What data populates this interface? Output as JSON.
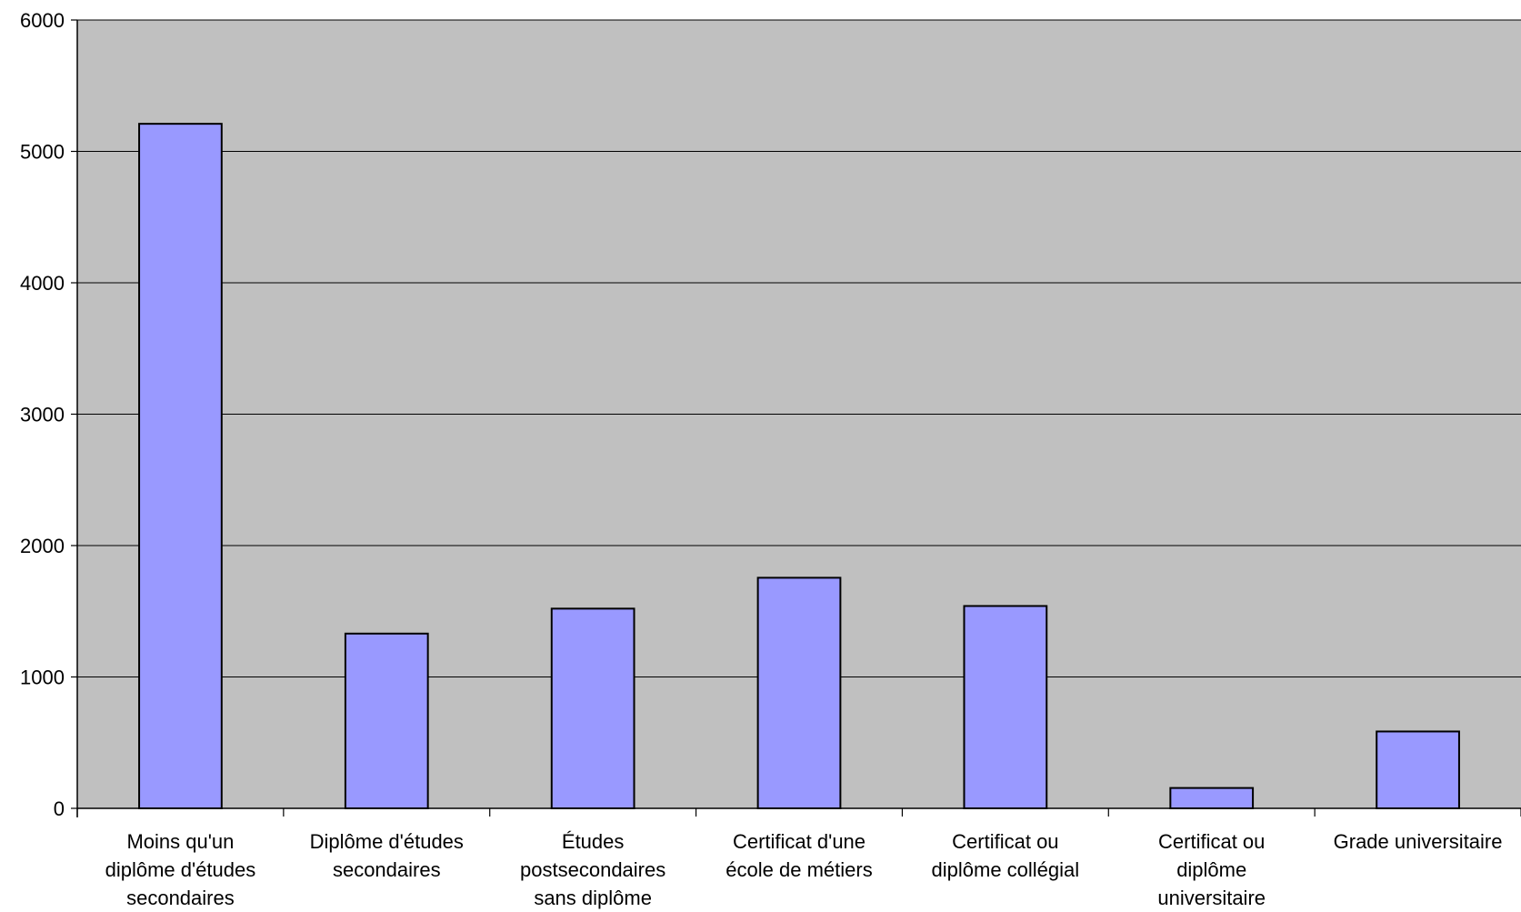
{
  "chart_data": {
    "type": "bar",
    "title": "",
    "xlabel": "",
    "ylabel": "",
    "categories": [
      "Moins qu'un diplôme d'études secondaires",
      "Diplôme d'études secondaires",
      "Études postsecondaires sans diplôme",
      "Certificat d'une école de métiers",
      "Certificat ou diplôme collégial",
      "Certificat ou diplôme universitaire",
      "Grade universitaire"
    ],
    "category_lines": [
      [
        "Moins qu'un",
        "diplôme d'études",
        "secondaires"
      ],
      [
        "Diplôme d'études",
        "secondaires"
      ],
      [
        "Études",
        "postsecondaires",
        "sans diplôme"
      ],
      [
        "Certificat d'une",
        "école de métiers"
      ],
      [
        "Certificat ou",
        "diplôme collégial"
      ],
      [
        "Certificat ou",
        "diplôme",
        "universitaire"
      ],
      [
        "Grade universitaire"
      ]
    ],
    "values": [
      5210,
      1330,
      1520,
      1755,
      1540,
      155,
      585
    ],
    "ylim": [
      0,
      6000
    ],
    "yticks": [
      0,
      1000,
      2000,
      3000,
      4000,
      5000,
      6000
    ],
    "grid": true,
    "legend": "none",
    "colors": {
      "bar_fill": "#9999ff",
      "bar_stroke": "#000000",
      "plot_background": "#c0c0c0",
      "gridline": "#000000"
    }
  }
}
